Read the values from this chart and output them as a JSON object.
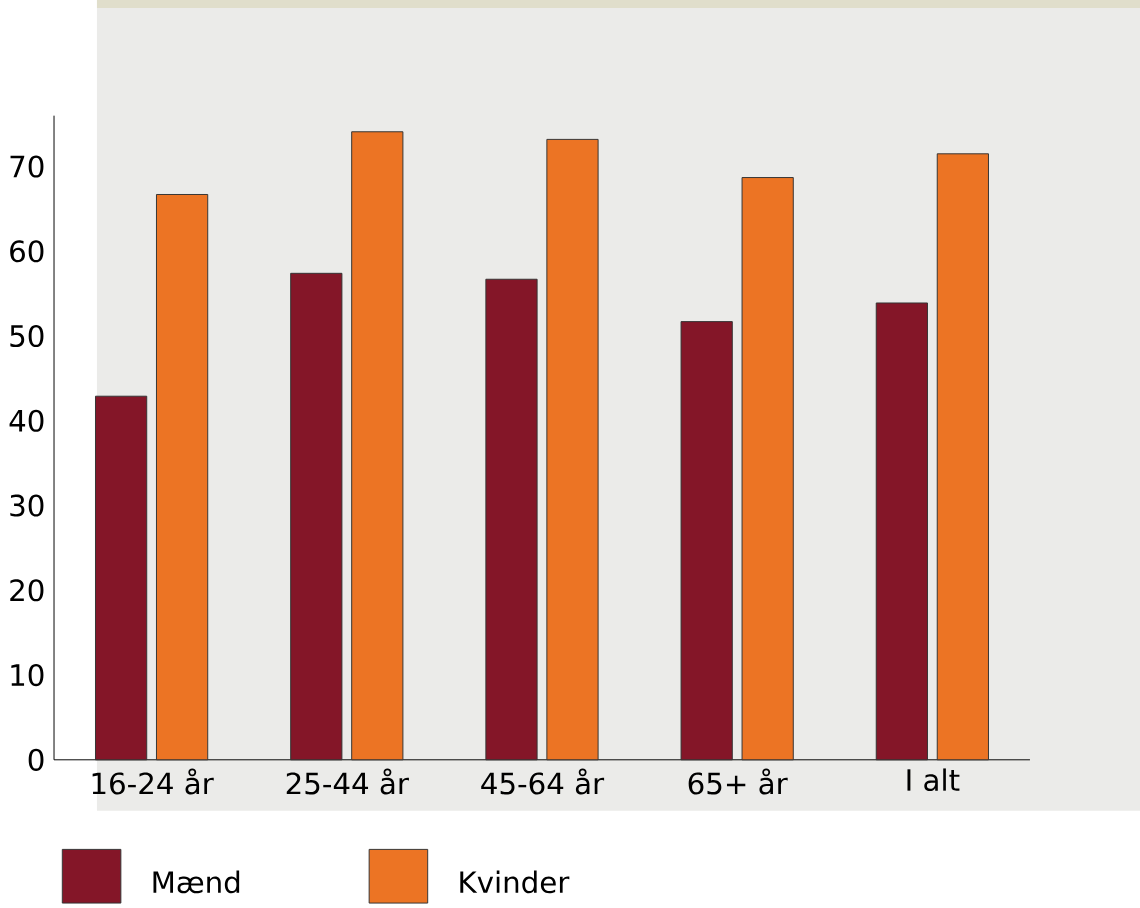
{
  "chart_data": {
    "type": "bar",
    "categories": [
      "16-24 år",
      "25-44 år",
      "45-64 år",
      "65+ år",
      "I alt"
    ],
    "series": [
      {
        "name": "Mænd",
        "color": "#841628",
        "values": [
          42.9,
          57.4,
          56.7,
          51.7,
          53.9
        ]
      },
      {
        "name": "Kvinder",
        "color": "#ec7424",
        "values": [
          66.7,
          74.1,
          73.2,
          68.7,
          71.5
        ]
      }
    ],
    "ylim": [
      0,
      76
    ],
    "yticks": [
      0,
      10,
      20,
      30,
      40,
      50,
      60,
      70
    ],
    "grid": false,
    "legend": "bottom"
  }
}
